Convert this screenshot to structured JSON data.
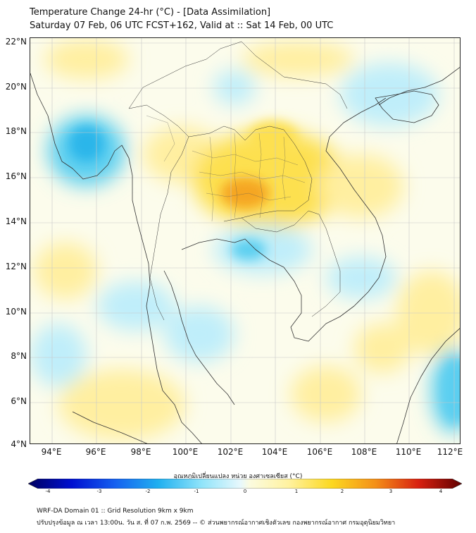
{
  "title": {
    "line1": "Temperature Change 24-hr (°C) - [Data Assimilation]",
    "line2": "Saturday 07 Feb, 06 UTC FCST+162, Valid at :: Sat 14 Feb, 00 UTC"
  },
  "map": {
    "lat_labels": [
      "22°N",
      "20°N",
      "18°N",
      "16°N",
      "14°N",
      "12°N",
      "10°N",
      "8°N",
      "6°N",
      "4°N"
    ],
    "lon_labels": [
      "94°E",
      "96°E",
      "98°E",
      "100°E",
      "102°E",
      "104°E",
      "106°E",
      "108°E",
      "110°E",
      "112°E"
    ],
    "lat_range": [
      4,
      22
    ],
    "lon_range": [
      93,
      112.3
    ]
  },
  "colorbar": {
    "title": "อุณหภูมิเปลี่ยนแปลง หน่วย องศาเซลเซียส (°C)",
    "labels": [
      "-4",
      "-3",
      "-2",
      "-1",
      "0",
      "1",
      "2",
      "3",
      "4"
    ],
    "min": -4,
    "max": 4
  },
  "footer": {
    "line1": "WRF-DA Domain 01 :: Grid Resolution 9km x 9km",
    "line2": "ปรับปรุงข้อมูล ณ เวลา 13:00น. วัน ส. ที่ 07 ก.พ. 2569 -- © ส่วนพยากรณ์อากาศเชิงตัวเลข กองพยากรณ์อากาศ กรมอุตุนิยมวิทยา"
  },
  "colors": {
    "neutral": "#fcfcec",
    "warm_light": "#ffefa0",
    "warm": "#fde050",
    "warm_strong": "#f5a623",
    "cool_light": "#bfeefa",
    "cool": "#5ccff0",
    "cool_strong": "#2bb6ea"
  }
}
